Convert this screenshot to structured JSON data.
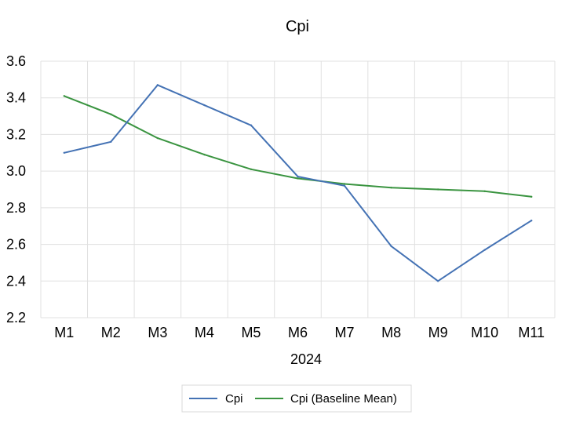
{
  "chart_data": {
    "type": "line",
    "title": "Cpi",
    "xlabel": "2024",
    "ylabel": "",
    "categories": [
      "M1",
      "M2",
      "M3",
      "M4",
      "M5",
      "M6",
      "M7",
      "M8",
      "M9",
      "M10",
      "M11"
    ],
    "ylim": [
      2.2,
      3.6
    ],
    "yticks": [
      "2.2",
      "2.4",
      "2.6",
      "2.8",
      "3.0",
      "3.2",
      "3.4",
      "3.6"
    ],
    "grid": true,
    "legend_position": "bottom",
    "series": [
      {
        "name": "Cpi",
        "color": "#4472b4",
        "values": [
          3.1,
          3.16,
          3.47,
          3.36,
          3.25,
          2.97,
          2.92,
          2.59,
          2.4,
          2.57,
          2.73
        ]
      },
      {
        "name": "Cpi (Baseline Mean)",
        "color": "#3a9440",
        "values": [
          3.41,
          3.31,
          3.18,
          3.09,
          3.01,
          2.96,
          2.93,
          2.91,
          2.9,
          2.89,
          2.86
        ]
      }
    ]
  }
}
